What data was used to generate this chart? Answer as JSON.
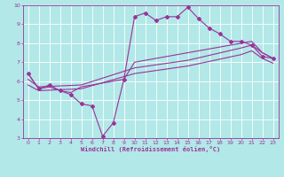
{
  "background_color": "#b2e8e8",
  "grid_color": "#ffffff",
  "line_color": "#993399",
  "xlabel": "Windchill (Refroidissement éolien,°C)",
  "xlim": [
    -0.5,
    23.5
  ],
  "ylim": [
    3,
    10
  ],
  "xticks": [
    0,
    1,
    2,
    3,
    4,
    5,
    6,
    7,
    8,
    9,
    10,
    11,
    12,
    13,
    14,
    15,
    16,
    17,
    18,
    19,
    20,
    21,
    22,
    23
  ],
  "yticks": [
    3,
    4,
    5,
    6,
    7,
    8,
    9,
    10
  ],
  "curve1_x": [
    0,
    1,
    2,
    3,
    4,
    5,
    6,
    7,
    8,
    9,
    10,
    11,
    12,
    13,
    14,
    15,
    16,
    17,
    18,
    19,
    20,
    21,
    22,
    23
  ],
  "curve1_y": [
    6.4,
    5.6,
    5.8,
    5.5,
    5.3,
    4.8,
    4.7,
    3.1,
    3.8,
    6.1,
    9.4,
    9.6,
    9.2,
    9.4,
    9.4,
    9.9,
    9.3,
    8.8,
    8.5,
    8.1,
    8.1,
    7.9,
    7.3,
    7.2
  ],
  "curve2_x": [
    0,
    1,
    2,
    3,
    4,
    5,
    9,
    10,
    15,
    20,
    21,
    22,
    23
  ],
  "curve2_y": [
    6.4,
    5.6,
    5.7,
    5.5,
    5.4,
    5.7,
    6.1,
    7.0,
    7.5,
    8.0,
    8.1,
    7.5,
    7.2
  ],
  "curve3_x": [
    0,
    1,
    5,
    10,
    15,
    20,
    21,
    22,
    23
  ],
  "curve3_y": [
    6.1,
    5.7,
    5.8,
    6.7,
    7.1,
    7.75,
    7.9,
    7.5,
    7.2
  ],
  "curve4_x": [
    0,
    1,
    5,
    10,
    15,
    20,
    21,
    22,
    23
  ],
  "curve4_y": [
    5.8,
    5.5,
    5.6,
    6.4,
    6.8,
    7.4,
    7.6,
    7.2,
    6.95
  ]
}
